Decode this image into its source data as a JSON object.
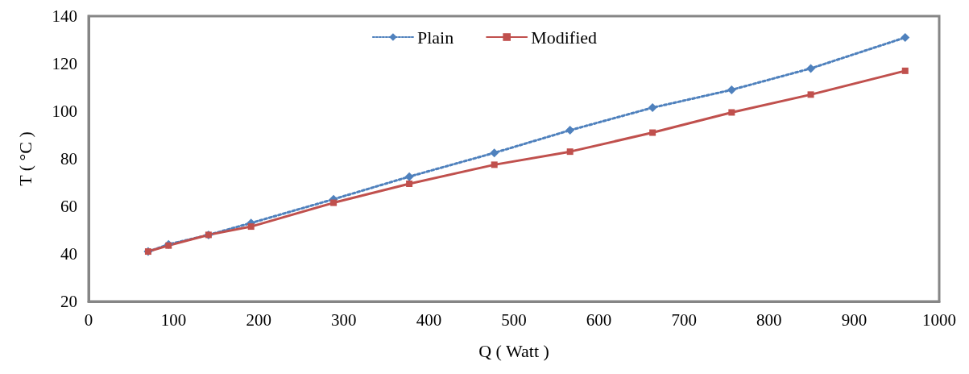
{
  "chart_data": {
    "type": "line",
    "xlabel": "Q ( Watt )",
    "ylabel": "T ( °C )",
    "x": [
      70,
      94,
      141,
      191,
      288,
      377,
      477,
      566,
      663,
      756,
      849,
      960
    ],
    "series": [
      {
        "name": "Plain",
        "color": "#4f81bd",
        "marker": "diamond",
        "line_style": "dotted",
        "values": [
          41,
          44,
          48,
          53,
          63,
          72.5,
          82.5,
          92,
          101.5,
          109,
          118,
          131
        ]
      },
      {
        "name": "Modified",
        "color": "#c0504d",
        "marker": "square",
        "line_style": "solid",
        "values": [
          41,
          43.5,
          48,
          51.5,
          61.5,
          69.5,
          77.5,
          83,
          91,
          99.5,
          107,
          117
        ]
      }
    ],
    "xlim": [
      0,
      1000
    ],
    "xticks": [
      0,
      100,
      200,
      300,
      400,
      500,
      600,
      700,
      800,
      900,
      1000
    ],
    "ylim": [
      20,
      140
    ],
    "yticks": [
      20,
      40,
      60,
      80,
      100,
      120,
      140
    ],
    "grid": false,
    "legend": "top"
  }
}
